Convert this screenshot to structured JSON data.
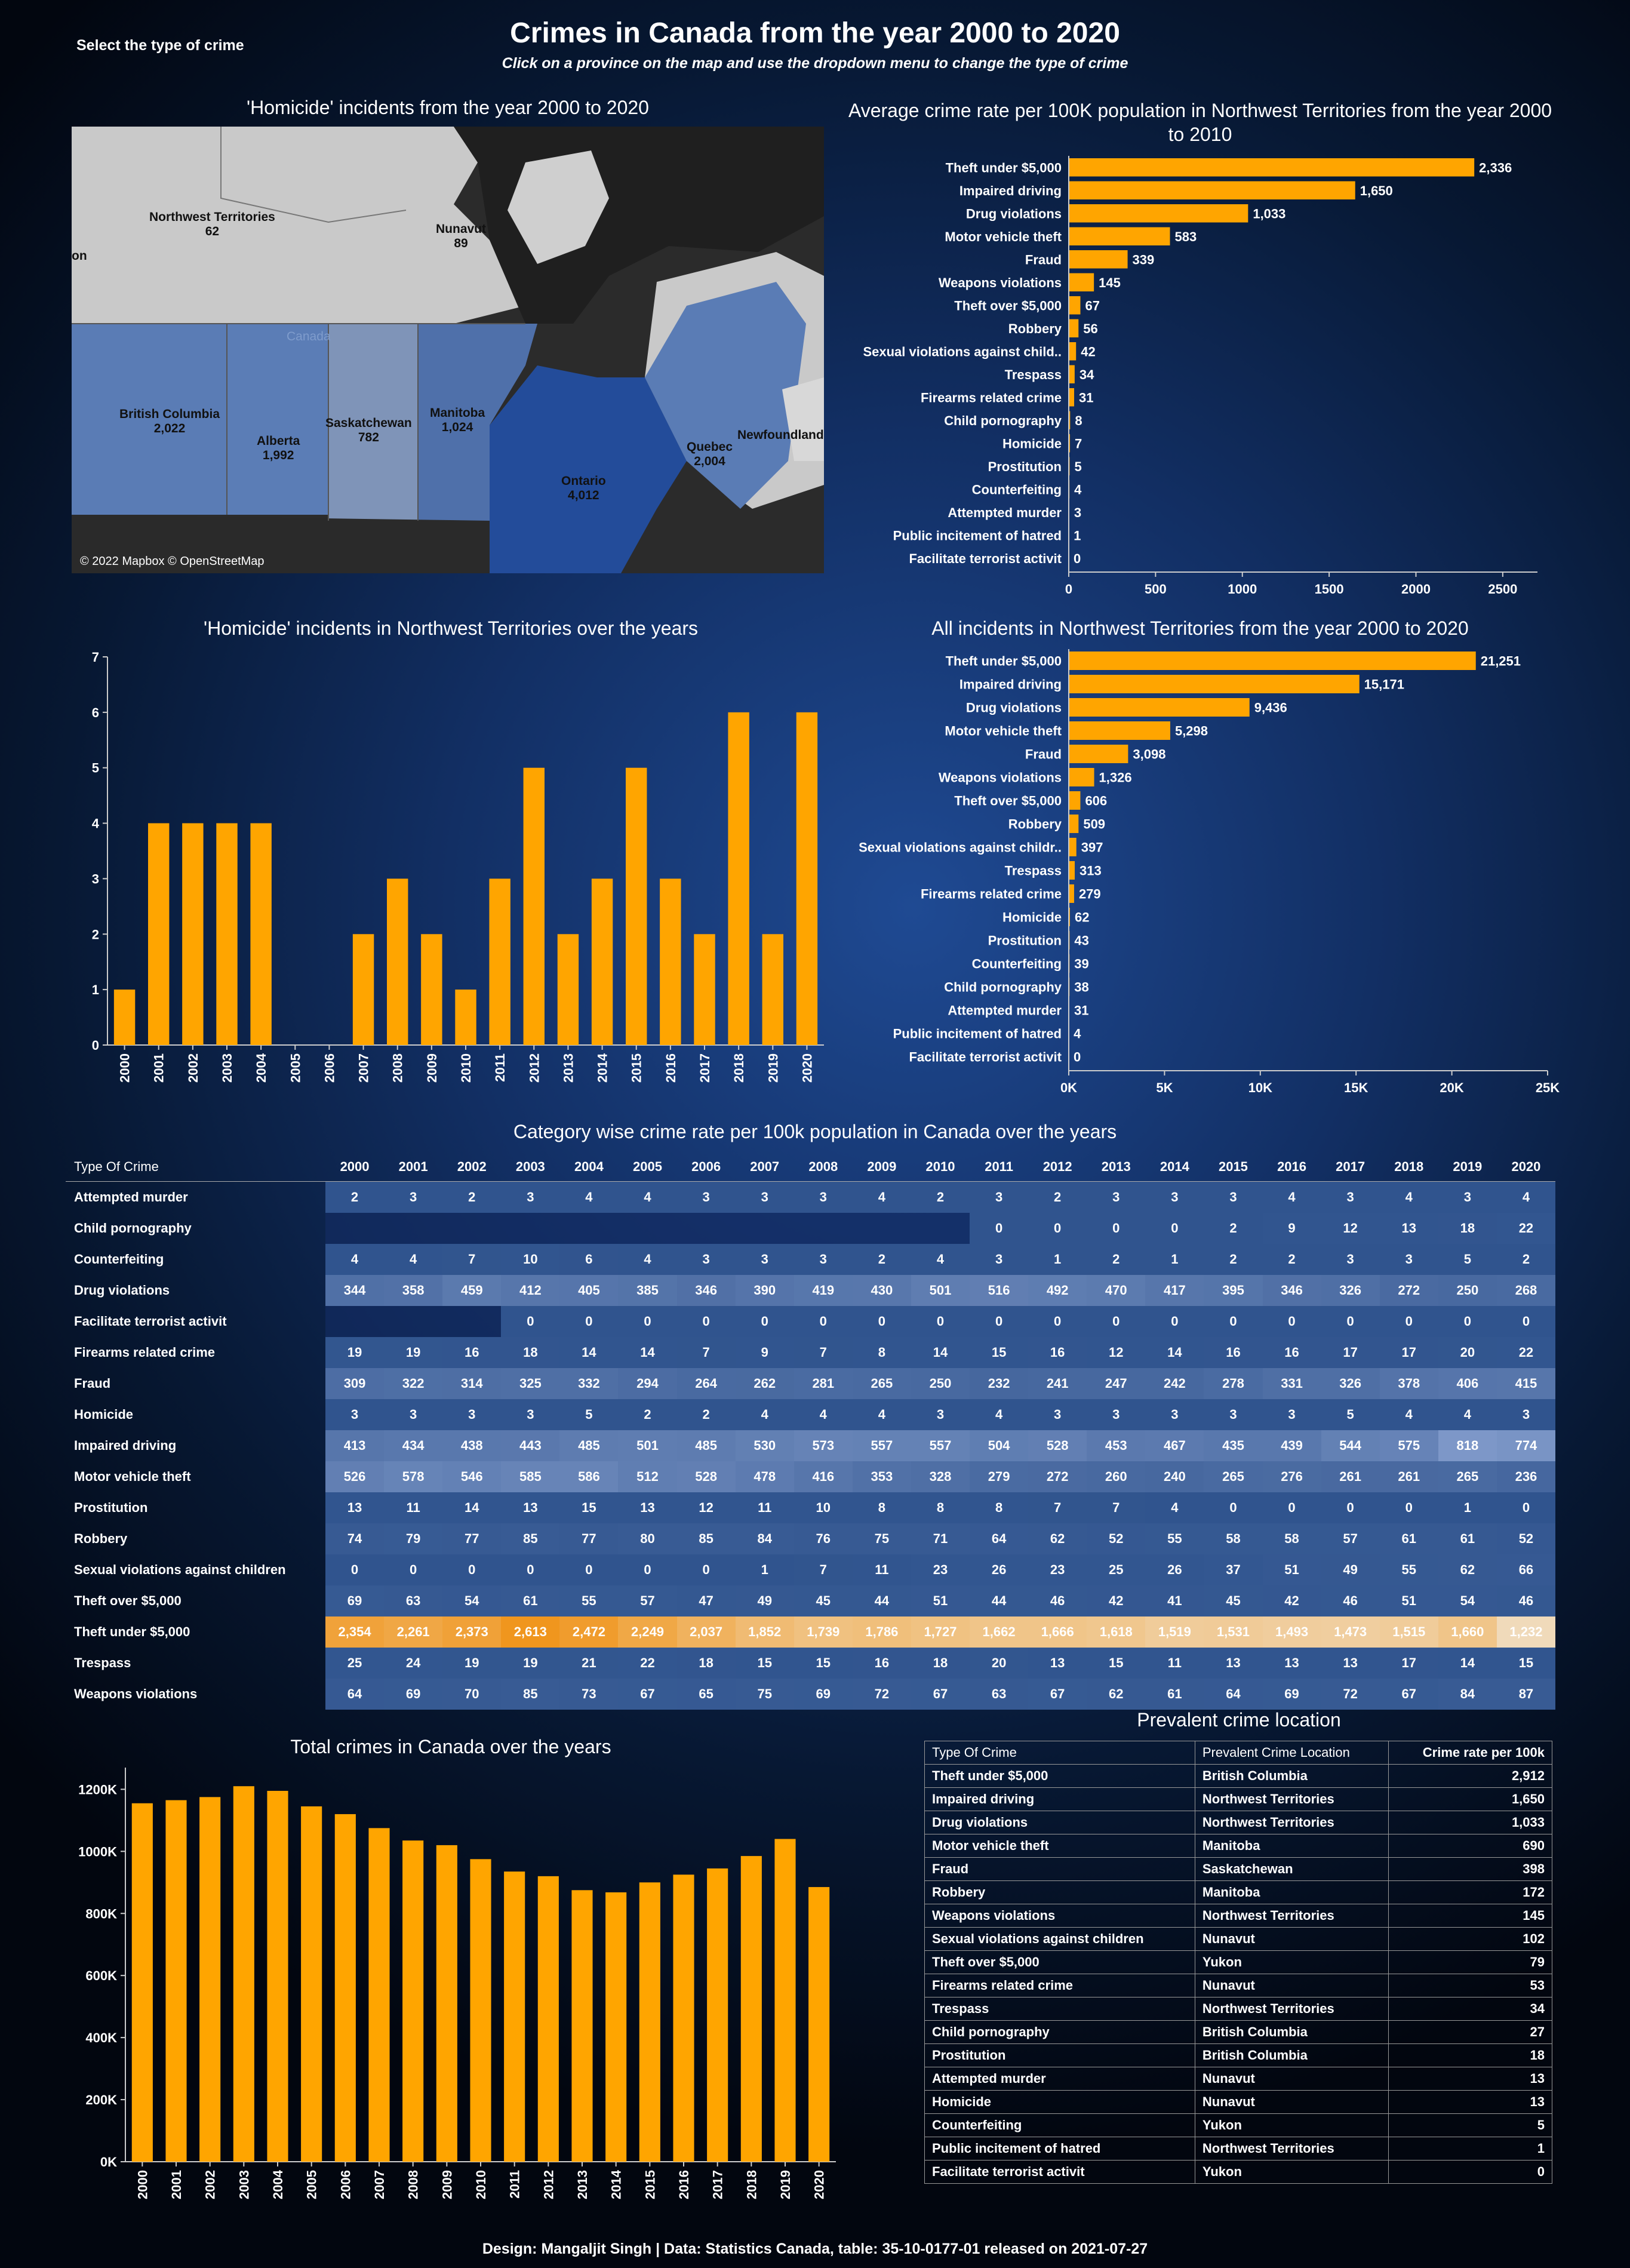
{
  "header": {
    "select_label": "Select the type of crime",
    "title": "Crimes in Canada from the year 2000 to 2020",
    "subtitle": "Click on a province on the map and use the dropdown menu to change the type of crime"
  },
  "map": {
    "title": "'Homicide' incidents from the year 2000 to 2020",
    "center_label": "Canada",
    "credit": "© 2022 Mapbox © OpenStreetMap",
    "regions": [
      {
        "name": "Northwest Territories",
        "value": "62"
      },
      {
        "name": "Nunavut",
        "value": "89"
      },
      {
        "name": "British Columbia",
        "value": "2,022"
      },
      {
        "name": "Alberta",
        "value": "1,992"
      },
      {
        "name": "Saskatchewan",
        "value": "782"
      },
      {
        "name": "Manitoba",
        "value": "1,024"
      },
      {
        "name": "Ontario",
        "value": "4,012"
      },
      {
        "name": "Quebec",
        "value": "2,004"
      },
      {
        "name": "Newfoundland",
        "value": ""
      },
      {
        "name": "on",
        "value": ""
      }
    ]
  },
  "chart_data": [
    {
      "id": "avg_rate",
      "type": "bar",
      "orientation": "horizontal",
      "title": "Average crime rate per 100K population in Northwest Territories from the year 2000 to 2010",
      "categories": [
        "Theft under $5,000",
        "Impaired driving",
        "Drug violations",
        "Motor vehicle theft",
        "Fraud",
        "Weapons violations",
        "Theft over $5,000",
        "Robbery",
        "Sexual violations against child..",
        "Trespass",
        "Firearms related crime",
        "Child pornography",
        "Homicide",
        "Prostitution",
        "Counterfeiting",
        "Attempted murder",
        "Public incitement of hatred",
        "Facilitate terrorist activit"
      ],
      "values": [
        2336,
        1650,
        1033,
        583,
        339,
        145,
        67,
        56,
        42,
        34,
        31,
        8,
        7,
        5,
        4,
        3,
        1,
        0
      ],
      "labels": [
        "2,336",
        "1,650",
        "1,033",
        "583",
        "339",
        "145",
        "67",
        "56",
        "42",
        "34",
        "31",
        "8",
        "7",
        "5",
        "4",
        "3",
        "1",
        "0"
      ],
      "xlim": [
        0,
        2700
      ],
      "ticks": [
        "0",
        "500",
        "1000",
        "1500",
        "2000",
        "2500"
      ],
      "tick_values": [
        0,
        500,
        1000,
        1500,
        2000,
        2500
      ],
      "color": "#FFA500"
    },
    {
      "id": "all_incidents",
      "type": "bar",
      "orientation": "horizontal",
      "title": "All incidents in Northwest Territories from the year 2000 to 2020",
      "categories": [
        "Theft under $5,000",
        "Impaired driving",
        "Drug violations",
        "Motor vehicle theft",
        "Fraud",
        "Weapons violations",
        "Theft over $5,000",
        "Robbery",
        "Sexual violations against childr..",
        "Trespass",
        "Firearms related crime",
        "Homicide",
        "Prostitution",
        "Counterfeiting",
        "Child pornography",
        "Attempted murder",
        "Public incitement of hatred",
        "Facilitate terrorist activit"
      ],
      "values": [
        21251,
        15171,
        9436,
        5298,
        3098,
        1326,
        606,
        509,
        397,
        313,
        279,
        62,
        43,
        39,
        38,
        31,
        4,
        0
      ],
      "labels": [
        "21,251",
        "15,171",
        "9,436",
        "5,298",
        "3,098",
        "1,326",
        "606",
        "509",
        "397",
        "313",
        "279",
        "62",
        "43",
        "39",
        "38",
        "31",
        "4",
        "0"
      ],
      "xlim": [
        0,
        25000
      ],
      "ticks": [
        "0K",
        "5K",
        "10K",
        "15K",
        "20K",
        "25K"
      ],
      "tick_values": [
        0,
        5000,
        10000,
        15000,
        20000,
        25000
      ],
      "color": "#FFA500"
    },
    {
      "id": "homicide_years",
      "type": "bar",
      "title": "'Homicide' incidents in Northwest Territories over the years",
      "categories": [
        "2000",
        "2001",
        "2002",
        "2003",
        "2004",
        "2005",
        "2006",
        "2007",
        "2008",
        "2009",
        "2010",
        "2011",
        "2012",
        "2013",
        "2014",
        "2015",
        "2016",
        "2017",
        "2018",
        "2019",
        "2020"
      ],
      "values": [
        1,
        4,
        4,
        4,
        4,
        0,
        0,
        2,
        3,
        2,
        1,
        3,
        5,
        2,
        3,
        5,
        3,
        2,
        6,
        2,
        6
      ],
      "ylim": [
        0,
        7
      ],
      "ticks": [
        "0",
        "1",
        "2",
        "3",
        "4",
        "5",
        "6",
        "7"
      ],
      "tick_values": [
        0,
        1,
        2,
        3,
        4,
        5,
        6,
        7
      ],
      "color": "#FFA500"
    },
    {
      "id": "total_crimes",
      "type": "bar",
      "title": "Total crimes in Canada over the years",
      "categories": [
        "2000",
        "2001",
        "2002",
        "2003",
        "2004",
        "2005",
        "2006",
        "2007",
        "2008",
        "2009",
        "2010",
        "2011",
        "2012",
        "2013",
        "2014",
        "2015",
        "2016",
        "2017",
        "2018",
        "2019",
        "2020"
      ],
      "values": [
        1155000,
        1165000,
        1175000,
        1210000,
        1195000,
        1145000,
        1120000,
        1075000,
        1035000,
        1020000,
        975000,
        935000,
        920000,
        875000,
        868000,
        900000,
        925000,
        945000,
        985000,
        1040000,
        885000
      ],
      "ylim": [
        0,
        1270000
      ],
      "ticks": [
        "0K",
        "200K",
        "400K",
        "600K",
        "800K",
        "1000K",
        "1200K"
      ],
      "tick_values": [
        0,
        200000,
        400000,
        600000,
        800000,
        1000000,
        1200000
      ],
      "color": "#FFA500"
    },
    {
      "id": "category_heatmap",
      "type": "heatmap",
      "title": "Category wise crime rate per 100k population in Canada over the years",
      "row_header": "Type Of Crime",
      "columns": [
        "2000",
        "2001",
        "2002",
        "2003",
        "2004",
        "2005",
        "2006",
        "2007",
        "2008",
        "2009",
        "2010",
        "2011",
        "2012",
        "2013",
        "2014",
        "2015",
        "2016",
        "2017",
        "2018",
        "2019",
        "2020"
      ],
      "rows": [
        {
          "name": "Attempted murder",
          "values": [
            "2",
            "3",
            "2",
            "3",
            "4",
            "4",
            "3",
            "3",
            "3",
            "4",
            "2",
            "3",
            "2",
            "3",
            "3",
            "3",
            "4",
            "3",
            "4",
            "3",
            "4"
          ]
        },
        {
          "name": "Child pornography",
          "values": [
            "",
            "",
            "",
            "",
            "",
            "",
            "",
            "",
            "",
            "",
            "",
            "0",
            "0",
            "0",
            "0",
            "2",
            "9",
            "12",
            "13",
            "18",
            "22"
          ]
        },
        {
          "name": "Counterfeiting",
          "values": [
            "4",
            "4",
            "7",
            "10",
            "6",
            "4",
            "3",
            "3",
            "3",
            "2",
            "4",
            "3",
            "1",
            "2",
            "1",
            "2",
            "2",
            "3",
            "3",
            "5",
            "2"
          ]
        },
        {
          "name": "Drug violations",
          "values": [
            "344",
            "358",
            "459",
            "412",
            "405",
            "385",
            "346",
            "390",
            "419",
            "430",
            "501",
            "516",
            "492",
            "470",
            "417",
            "395",
            "346",
            "326",
            "272",
            "250",
            "268"
          ]
        },
        {
          "name": "Facilitate terrorist activit",
          "values": [
            "",
            "",
            "",
            "0",
            "0",
            "0",
            "0",
            "0",
            "0",
            "0",
            "0",
            "0",
            "0",
            "0",
            "0",
            "0",
            "0",
            "0",
            "0",
            "0",
            "0"
          ]
        },
        {
          "name": "Firearms related crime",
          "values": [
            "19",
            "19",
            "16",
            "18",
            "14",
            "14",
            "7",
            "9",
            "7",
            "8",
            "14",
            "15",
            "16",
            "12",
            "14",
            "16",
            "16",
            "17",
            "17",
            "20",
            "22"
          ]
        },
        {
          "name": "Fraud",
          "values": [
            "309",
            "322",
            "314",
            "325",
            "332",
            "294",
            "264",
            "262",
            "281",
            "265",
            "250",
            "232",
            "241",
            "247",
            "242",
            "278",
            "331",
            "326",
            "378",
            "406",
            "415"
          ]
        },
        {
          "name": "Homicide",
          "values": [
            "3",
            "3",
            "3",
            "3",
            "5",
            "2",
            "2",
            "4",
            "4",
            "4",
            "3",
            "4",
            "3",
            "3",
            "3",
            "3",
            "3",
            "5",
            "4",
            "4",
            "3"
          ]
        },
        {
          "name": "Impaired driving",
          "values": [
            "413",
            "434",
            "438",
            "443",
            "485",
            "501",
            "485",
            "530",
            "573",
            "557",
            "557",
            "504",
            "528",
            "453",
            "467",
            "435",
            "439",
            "544",
            "575",
            "818",
            "774"
          ]
        },
        {
          "name": "Motor vehicle theft",
          "values": [
            "526",
            "578",
            "546",
            "585",
            "586",
            "512",
            "528",
            "478",
            "416",
            "353",
            "328",
            "279",
            "272",
            "260",
            "240",
            "265",
            "276",
            "261",
            "261",
            "265",
            "236"
          ]
        },
        {
          "name": "Prostitution",
          "values": [
            "13",
            "11",
            "14",
            "13",
            "15",
            "13",
            "12",
            "11",
            "10",
            "8",
            "8",
            "8",
            "7",
            "7",
            "4",
            "0",
            "0",
            "0",
            "0",
            "1",
            "0"
          ]
        },
        {
          "name": "Robbery",
          "values": [
            "74",
            "79",
            "77",
            "85",
            "77",
            "80",
            "85",
            "84",
            "76",
            "75",
            "71",
            "64",
            "62",
            "52",
            "55",
            "58",
            "58",
            "57",
            "61",
            "61",
            "52"
          ]
        },
        {
          "name": "Sexual violations against children",
          "values": [
            "0",
            "0",
            "0",
            "0",
            "0",
            "0",
            "0",
            "1",
            "7",
            "11",
            "23",
            "26",
            "23",
            "25",
            "26",
            "37",
            "51",
            "49",
            "55",
            "62",
            "66"
          ]
        },
        {
          "name": "Theft over $5,000",
          "values": [
            "69",
            "63",
            "54",
            "61",
            "55",
            "57",
            "47",
            "49",
            "45",
            "44",
            "51",
            "44",
            "46",
            "42",
            "41",
            "45",
            "42",
            "46",
            "51",
            "54",
            "46"
          ]
        },
        {
          "name": "Theft under $5,000",
          "values": [
            "2,354",
            "2,261",
            "2,373",
            "2,613",
            "2,472",
            "2,249",
            "2,037",
            "1,852",
            "1,739",
            "1,786",
            "1,727",
            "1,662",
            "1,666",
            "1,618",
            "1,519",
            "1,531",
            "1,493",
            "1,473",
            "1,515",
            "1,660",
            "1,232"
          ]
        },
        {
          "name": "Trespass",
          "values": [
            "25",
            "24",
            "19",
            "19",
            "21",
            "22",
            "18",
            "15",
            "15",
            "16",
            "18",
            "20",
            "13",
            "15",
            "11",
            "13",
            "13",
            "13",
            "17",
            "14",
            "15"
          ]
        },
        {
          "name": "Weapons violations",
          "values": [
            "64",
            "69",
            "70",
            "85",
            "73",
            "67",
            "65",
            "75",
            "69",
            "72",
            "67",
            "63",
            "67",
            "62",
            "61",
            "64",
            "69",
            "72",
            "67",
            "84",
            "87"
          ]
        }
      ]
    }
  ],
  "prevalent": {
    "title": "Prevalent crime location",
    "headers": [
      "Type Of Crime",
      "Prevalent Crime Location",
      "Crime rate per 100k"
    ],
    "rows": [
      [
        "Theft under $5,000",
        "British Columbia",
        "2,912"
      ],
      [
        "Impaired driving",
        "Northwest Territories",
        "1,650"
      ],
      [
        "Drug violations",
        "Northwest Territories",
        "1,033"
      ],
      [
        "Motor vehicle theft",
        "Manitoba",
        "690"
      ],
      [
        "Fraud",
        "Saskatchewan",
        "398"
      ],
      [
        "Robbery",
        "Manitoba",
        "172"
      ],
      [
        "Weapons violations",
        "Northwest Territories",
        "145"
      ],
      [
        "Sexual violations against children",
        "Nunavut",
        "102"
      ],
      [
        "Theft over $5,000",
        "Yukon",
        "79"
      ],
      [
        "Firearms related crime",
        "Nunavut",
        "53"
      ],
      [
        "Trespass",
        "Northwest Territories",
        "34"
      ],
      [
        "Child pornography",
        "British Columbia",
        "27"
      ],
      [
        "Prostitution",
        "British Columbia",
        "18"
      ],
      [
        "Attempted murder",
        "Nunavut",
        "13"
      ],
      [
        "Homicide",
        "Nunavut",
        "13"
      ],
      [
        "Counterfeiting",
        "Yukon",
        "5"
      ],
      [
        "Public incitement of hatred",
        "Northwest Territories",
        "1"
      ],
      [
        "Facilitate terrorist activit",
        "Yukon",
        "0"
      ]
    ]
  },
  "footer": "Design: Mangaljit Singh | Data: Statistics Canada, table: 35-10-0177-01 released on 2021-07-27"
}
